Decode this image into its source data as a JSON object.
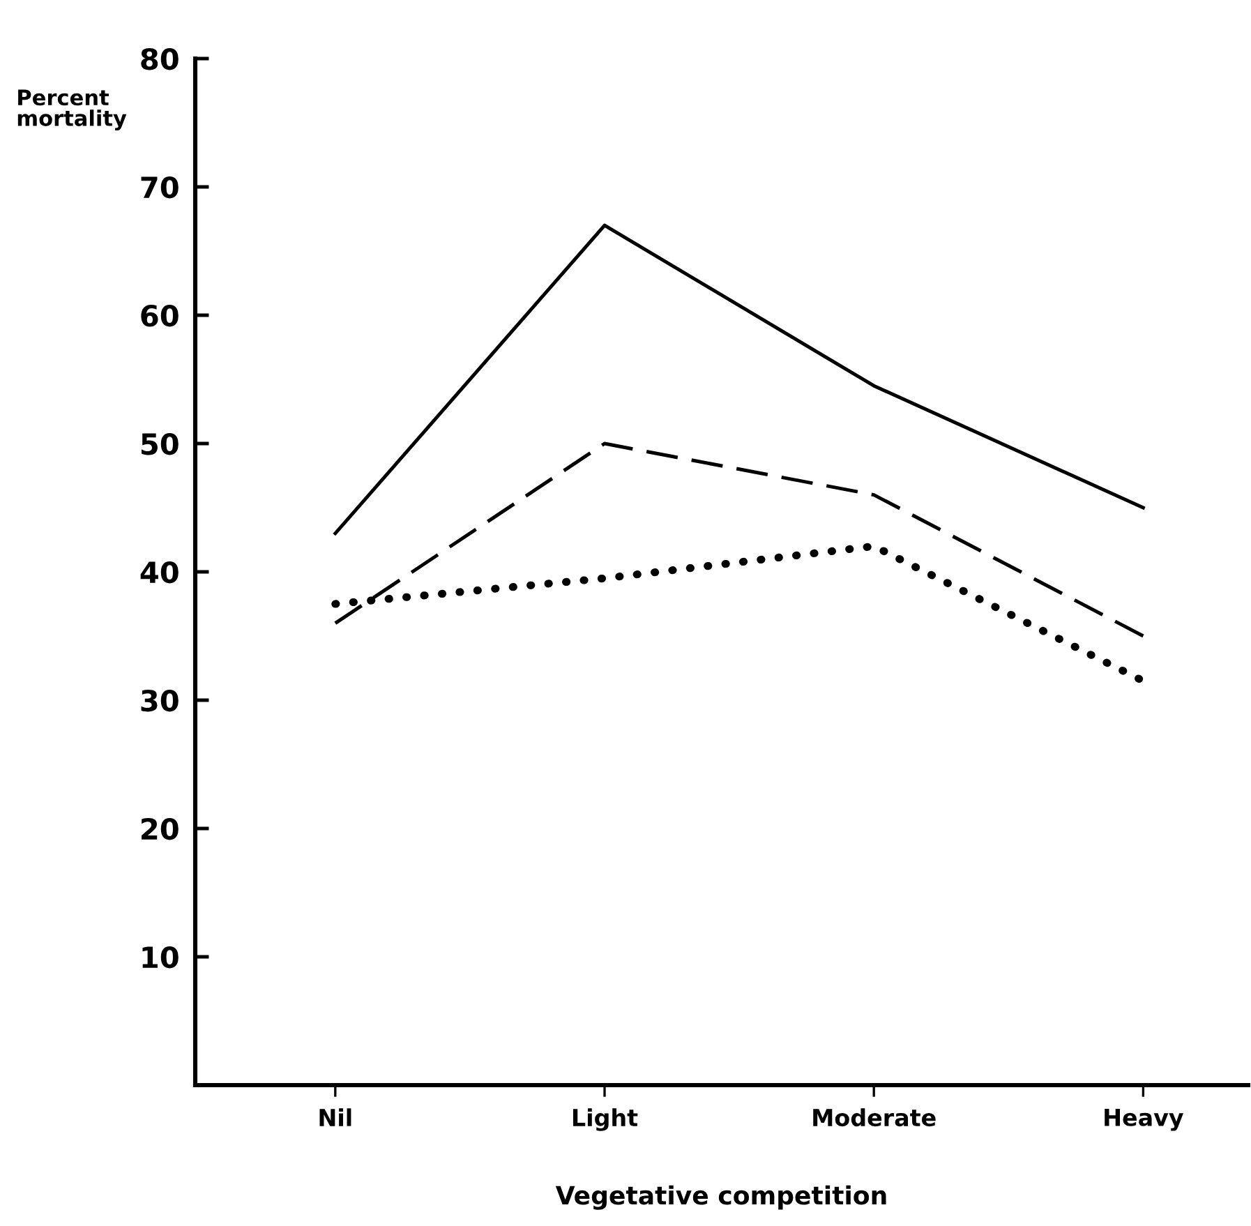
{
  "chart_data": {
    "type": "line",
    "ylabel": "Percent\nmortality",
    "xlabel": "Vegetative competition",
    "categories": [
      "Nil",
      "Light",
      "Moderate",
      "Heavy"
    ],
    "series": [
      {
        "color": "#000000",
        "line_style": "solid",
        "values": [
          43,
          67,
          54.5,
          45
        ]
      },
      {
        "color": "#000000",
        "line_style": "dashed",
        "values": [
          36,
          50,
          46,
          35
        ]
      },
      {
        "color": "#000000",
        "line_style": "dotted",
        "values": [
          37.5,
          39.5,
          42,
          31.5
        ]
      }
    ],
    "ylim": [
      0,
      80
    ],
    "yticks": [
      10,
      20,
      30,
      40,
      50,
      60,
      70,
      80
    ],
    "grid": false,
    "legend": false,
    "marker": "none"
  }
}
